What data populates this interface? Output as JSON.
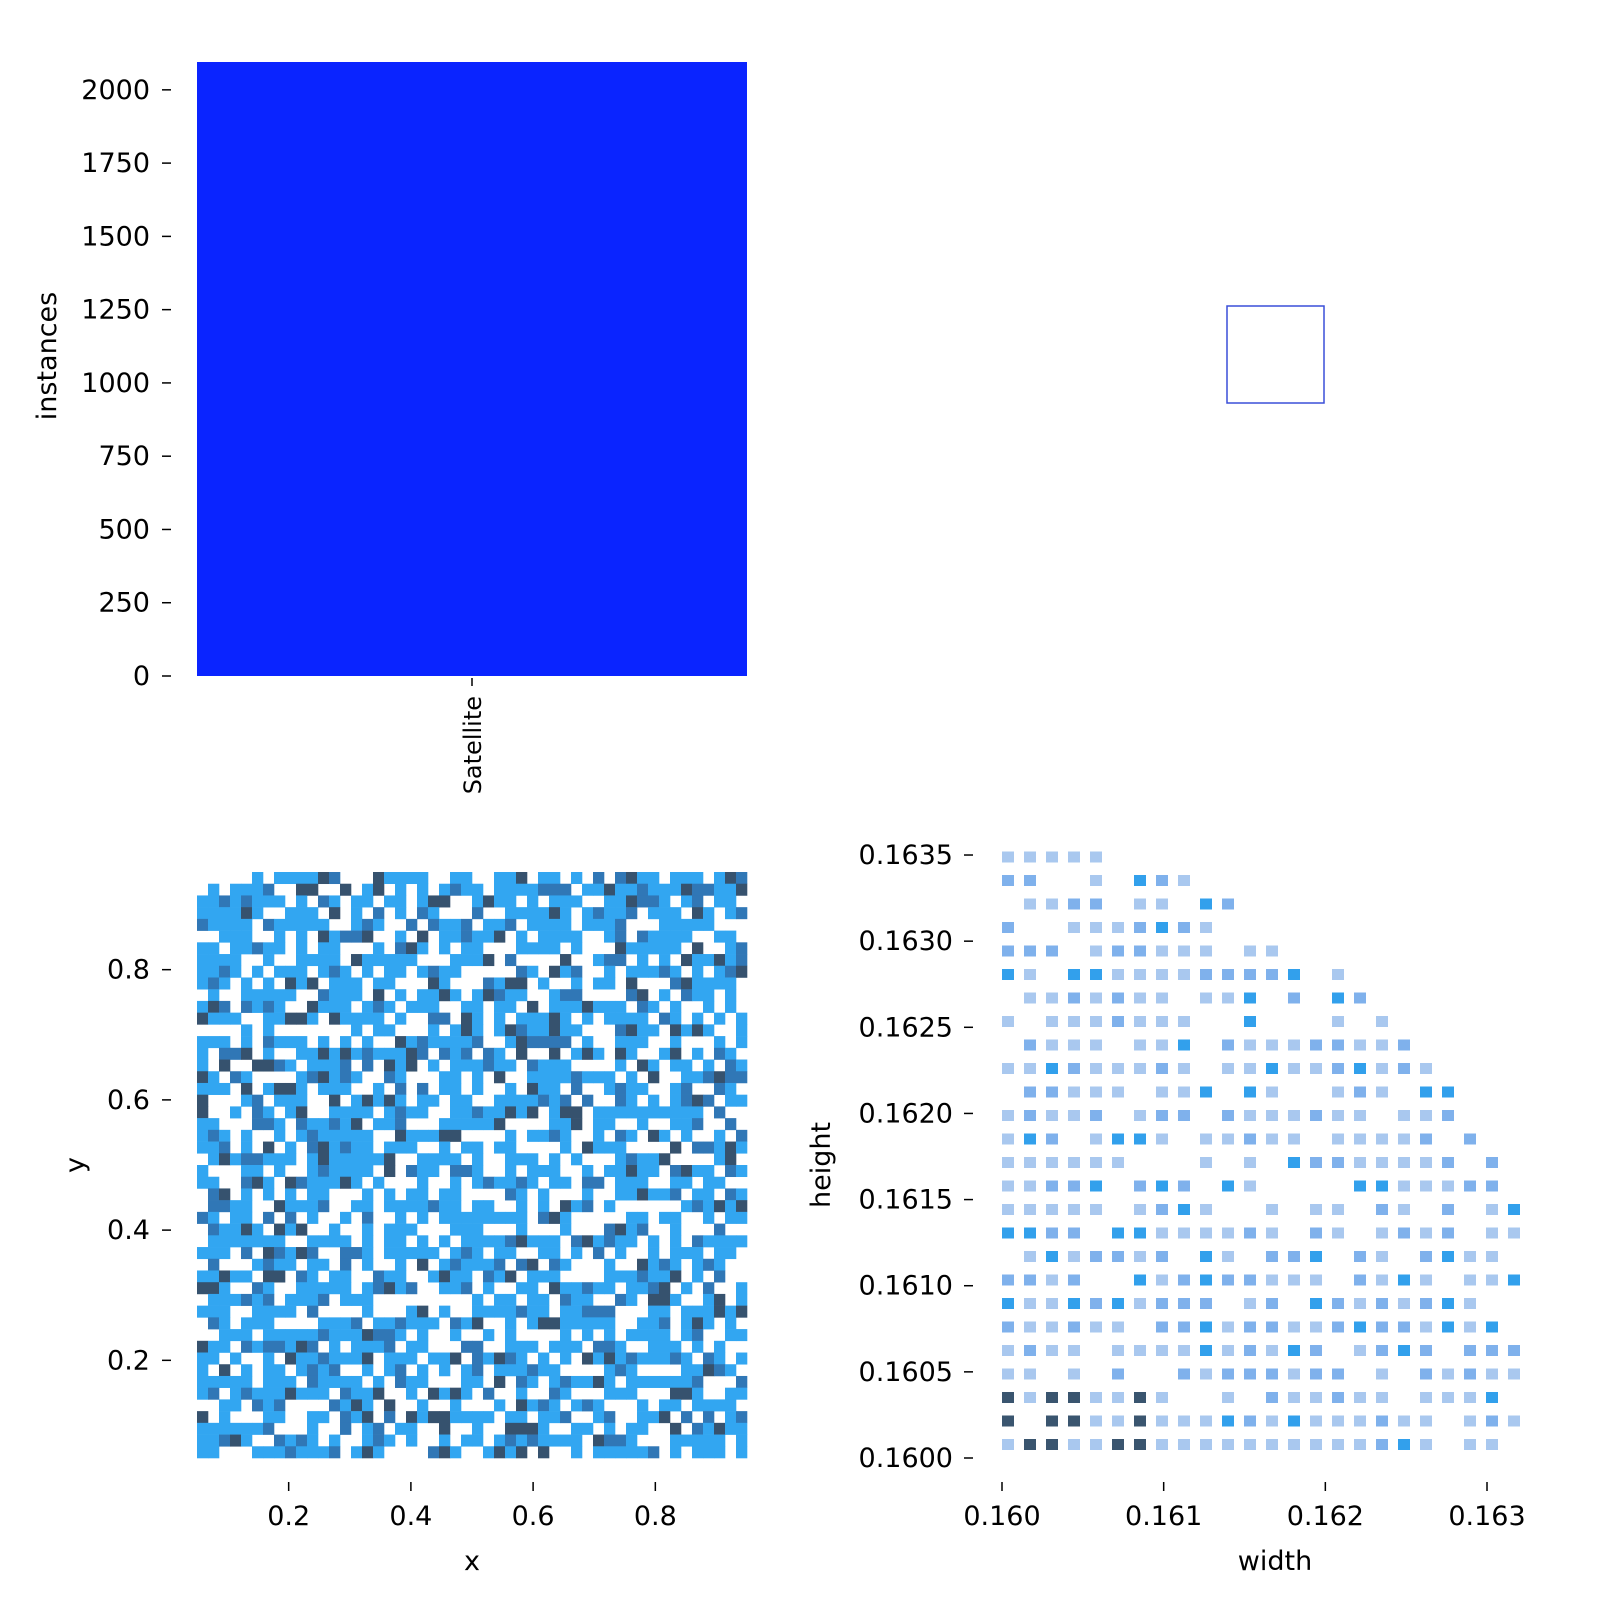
{
  "chart_data": [
    {
      "panel": "top-left",
      "type": "bar",
      "categories": [
        "Satellite"
      ],
      "values": [
        2095
      ],
      "ylabel": "instances",
      "xlabel": "",
      "ylim": [
        0,
        2095
      ],
      "yticks": [
        0,
        250,
        500,
        750,
        1000,
        1250,
        1500,
        1750,
        2000
      ],
      "ytick_labels": [
        "0",
        "250",
        "500",
        "750",
        "1000",
        "1250",
        "1500",
        "1750",
        "2000"
      ],
      "bar_color": "#0a24ff",
      "grid": false
    },
    {
      "panel": "top-right",
      "type": "other",
      "description_color": "#3a4fd8",
      "grid": false
    },
    {
      "panel": "bottom-left",
      "type": "heatmap",
      "xlabel": "x",
      "ylabel": "y",
      "xlim": [
        0.05,
        0.95
      ],
      "ylim": [
        0.05,
        0.95
      ],
      "xticks": [
        0.2,
        0.4,
        0.6,
        0.8
      ],
      "xtick_labels": [
        "0.2",
        "0.4",
        "0.6",
        "0.8"
      ],
      "yticks": [
        0.2,
        0.4,
        0.6,
        0.8
      ],
      "ytick_labels": [
        "0.2",
        "0.4",
        "0.6",
        "0.8"
      ],
      "bins": 50,
      "colors": [
        "#32a6f1",
        "#3077b6",
        "#36526e"
      ],
      "grid": false
    },
    {
      "panel": "bottom-right",
      "type": "heatmap",
      "xlabel": "width",
      "ylabel": "height",
      "xlim": [
        0.16,
        0.1634
      ],
      "ylim": [
        0.16,
        0.1634
      ],
      "xticks": [
        0.16,
        0.161,
        0.162,
        0.163
      ],
      "xtick_labels": [
        "0.160",
        "0.161",
        "0.162",
        "0.163"
      ],
      "yticks": [
        0.16,
        0.1605,
        0.161,
        0.1615,
        0.162,
        0.1625,
        0.163,
        0.1635
      ],
      "ytick_labels": [
        "0.1600",
        "0.1605",
        "0.1610",
        "0.1615",
        "0.1620",
        "0.1625",
        "0.1630",
        "0.1635"
      ],
      "colors": [
        "#a9c8ef",
        "#7fb1ec",
        "#32a0ec",
        "#3a556f"
      ],
      "grid": false
    }
  ]
}
